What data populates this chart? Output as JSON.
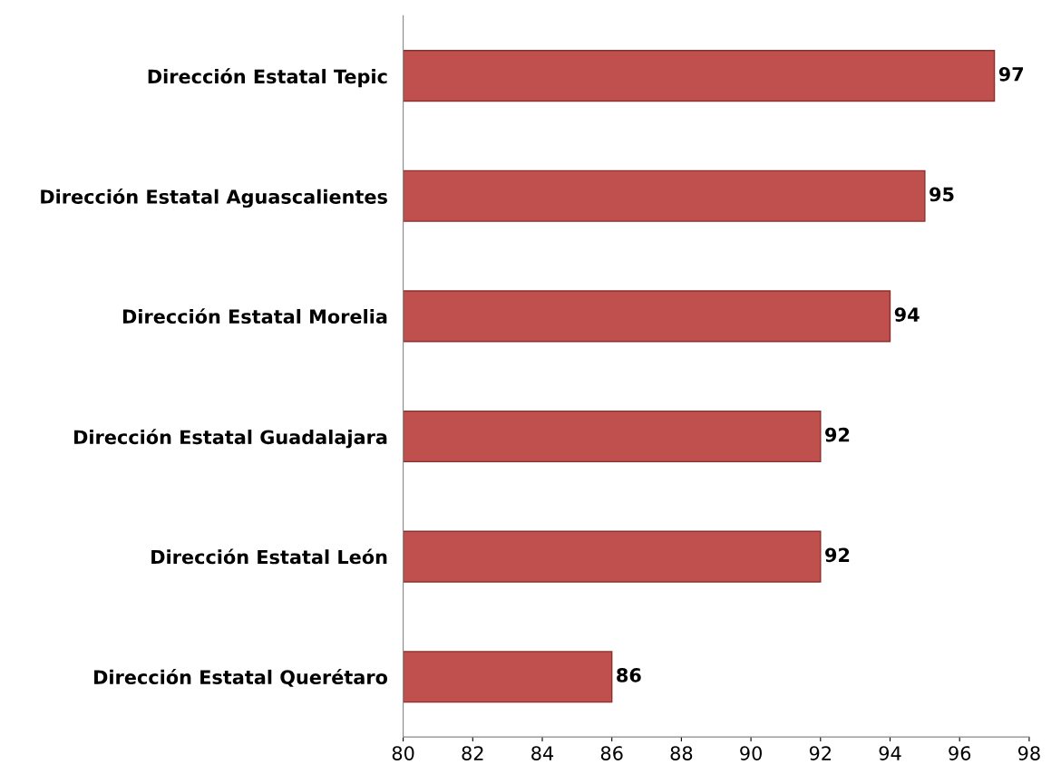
{
  "chart_data": {
    "type": "bar",
    "orientation": "horizontal",
    "categories": [
      "Dirección Estatal Tepic",
      "Dirección Estatal Aguascalientes",
      "Dirección Estatal Morelia",
      "Dirección Estatal Guadalajara",
      "Dirección Estatal León",
      "Dirección Estatal Querétaro"
    ],
    "values": [
      97,
      95,
      94,
      92,
      92,
      86
    ],
    "color": "#c0504d",
    "xlim": [
      80,
      98
    ],
    "xticks": [
      80,
      82,
      84,
      86,
      88,
      90,
      92,
      94,
      96,
      98
    ],
    "grid": false,
    "legend": false,
    "data_labels": true
  }
}
